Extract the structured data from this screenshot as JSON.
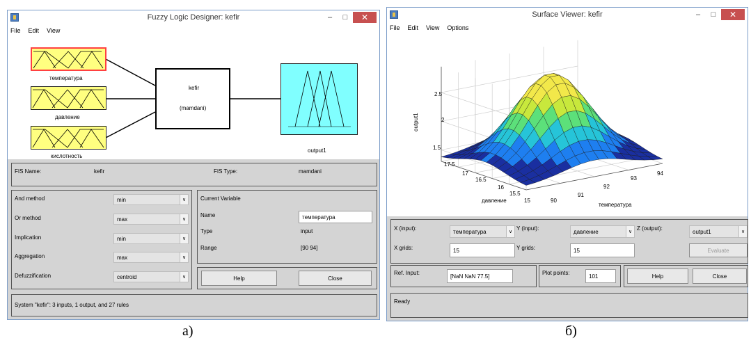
{
  "fld": {
    "window_title": "Fuzzy Logic Designer: kefir",
    "menu": [
      "File",
      "Edit",
      "View"
    ],
    "inputs": [
      "температура",
      "давление",
      "кислотность"
    ],
    "system_box": {
      "name": "kefir",
      "type": "(mamdani)"
    },
    "output_label": "output1",
    "fis_name_label": "FIS Name:",
    "fis_name_value": "kefir",
    "fis_type_label": "FIS Type:",
    "fis_type_value": "mamdani",
    "methods": [
      {
        "label": "And method",
        "value": "min"
      },
      {
        "label": "Or method",
        "value": "max"
      },
      {
        "label": "Implication",
        "value": "min"
      },
      {
        "label": "Aggregation",
        "value": "max"
      },
      {
        "label": "Defuzzification",
        "value": "centroid"
      }
    ],
    "current_variable": {
      "heading": "Current Variable",
      "name_label": "Name",
      "name_value": "температура",
      "type_label": "Type",
      "type_value": "input",
      "range_label": "Range",
      "range_value": "[90 94]"
    },
    "help_label": "Help",
    "close_label": "Close",
    "status": "System \"kefir\": 3 inputs, 1 output, and 27 rules",
    "caption": "a)"
  },
  "sv": {
    "window_title": "Surface Viewer: kefir",
    "menu": [
      "File",
      "Edit",
      "View",
      "Options"
    ],
    "surface_colors": [
      "#1a2fa0",
      "#1e7ff0",
      "#26c4d8",
      "#5ce07a",
      "#c8e83c",
      "#f2e84a"
    ],
    "axes": {
      "zlabel": "output1",
      "xlabel": "температура",
      "ylabel": "давление",
      "zticks": [
        "2.5",
        "2",
        "1.5"
      ],
      "xticks": [
        "90",
        "91",
        "92",
        "93",
        "94"
      ],
      "yticks": [
        "17.5",
        "17",
        "16.5",
        "16",
        "15.5",
        "15"
      ]
    },
    "x_input_label": "X (input):",
    "x_input_value": "температура",
    "y_input_label": "Y (input):",
    "y_input_value": "давление",
    "z_output_label": "Z (output):",
    "z_output_value": "output1",
    "x_grids_label": "X grids:",
    "x_grids_value": "15",
    "y_grids_label": "Y grids:",
    "y_grids_value": "15",
    "evaluate_label": "Evaluate",
    "ref_input_label": "Ref. Input:",
    "ref_input_value": "[NaN NaN 77.5]",
    "plot_points_label": "Plot points:",
    "plot_points_value": "101",
    "help_label": "Help",
    "close_label": "Close",
    "status": "Ready",
    "caption": "б)"
  }
}
